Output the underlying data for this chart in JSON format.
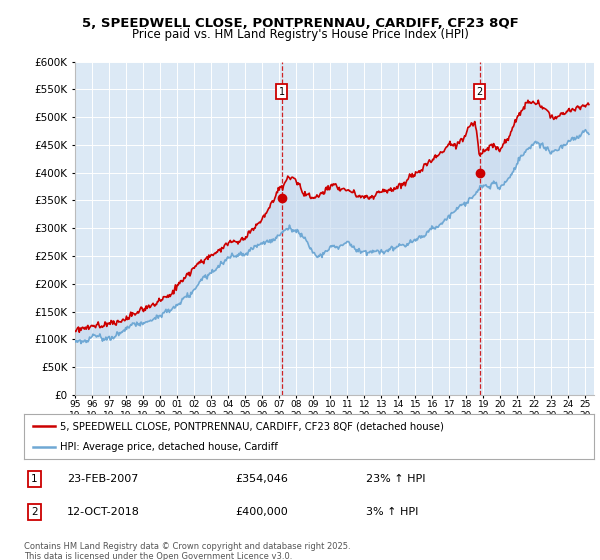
{
  "title": "5, SPEEDWELL CLOSE, PONTPRENNAU, CARDIFF, CF23 8QF",
  "subtitle": "Price paid vs. HM Land Registry's House Price Index (HPI)",
  "property_label": "5, SPEEDWELL CLOSE, PONTPRENNAU, CARDIFF, CF23 8QF (detached house)",
  "hpi_label": "HPI: Average price, detached house, Cardiff",
  "annotation1_date": "23-FEB-2007",
  "annotation1_price": "£354,046",
  "annotation1_hpi": "23% ↑ HPI",
  "annotation2_date": "12-OCT-2018",
  "annotation2_price": "£400,000",
  "annotation2_hpi": "3% ↑ HPI",
  "footnote": "Contains HM Land Registry data © Crown copyright and database right 2025.\nThis data is licensed under the Open Government Licence v3.0.",
  "plot_bg_color": "#dce9f5",
  "red_color": "#cc0000",
  "blue_color": "#6fa8d4",
  "fill_color": "#c5d8ee",
  "dashed_color": "#cc0000",
  "annotation_box_color": "#cc0000",
  "grid_color": "#ffffff",
  "ylim_min": 0,
  "ylim_max": 600000,
  "ytick_step": 50000,
  "sale1_year": 2007.14,
  "sale1_price": 354046,
  "sale2_year": 2018.78,
  "sale2_price": 400000
}
